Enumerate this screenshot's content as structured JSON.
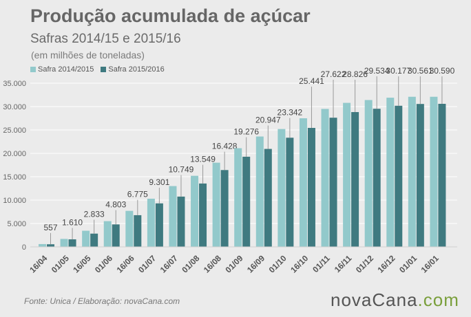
{
  "header": {
    "title": "Produção acumulada de açúcar",
    "subtitle": "Safras 2014/15 e 2015/16",
    "unit": "(em milhões de toneladas)"
  },
  "footer": {
    "source": "Fonte:  Unica  / Elaboração:  novaCana.com",
    "brand_main": "novaCana",
    "brand_suffix": ".com"
  },
  "colors": {
    "series1": "#92c9cb",
    "series2": "#3f7a80",
    "grid": "#ffffff",
    "label": "#444444",
    "leader": "#999999"
  },
  "chart_data": {
    "type": "bar",
    "categories": [
      "16/04",
      "01/05",
      "16/05",
      "01/06",
      "16/06",
      "01/07",
      "16/07",
      "01/08",
      "16/08",
      "01/09",
      "16/09",
      "01/10",
      "16/10",
      "01/11",
      "16/11",
      "01/12",
      "16/12",
      "01/01",
      "16/01"
    ],
    "series": [
      {
        "name": "Safra 2014/2015",
        "values": [
          600,
          1700,
          3450,
          5500,
          7700,
          10300,
          13000,
          15200,
          18000,
          21100,
          23600,
          25200,
          27500,
          29500,
          30800,
          31400,
          31900,
          32100,
          32100
        ]
      },
      {
        "name": "Safra 2015/2016",
        "values": [
          557,
          1610,
          2833,
          4803,
          6775,
          9301,
          10749,
          13549,
          16428,
          19276,
          20947,
          23342,
          25441,
          27622,
          28826,
          29534,
          30177,
          30561,
          30590
        ]
      }
    ],
    "data_labels": [
      "557",
      "1.610",
      "2.833",
      "4.803",
      "6.775",
      "9.301",
      "10.749",
      "13.549",
      "16.428",
      "19.276",
      "20.947",
      "23.342",
      "25.441",
      "27.622",
      "28.826",
      "29.534",
      "30.177",
      "30.561",
      "30.590"
    ],
    "y_ticks": [
      "0",
      "5.000",
      "10.000",
      "15.000",
      "20.000",
      "25.000",
      "30.000",
      "35.000"
    ],
    "ylim": [
      0,
      35000
    ],
    "grid": true,
    "legend_position": "top-left"
  }
}
